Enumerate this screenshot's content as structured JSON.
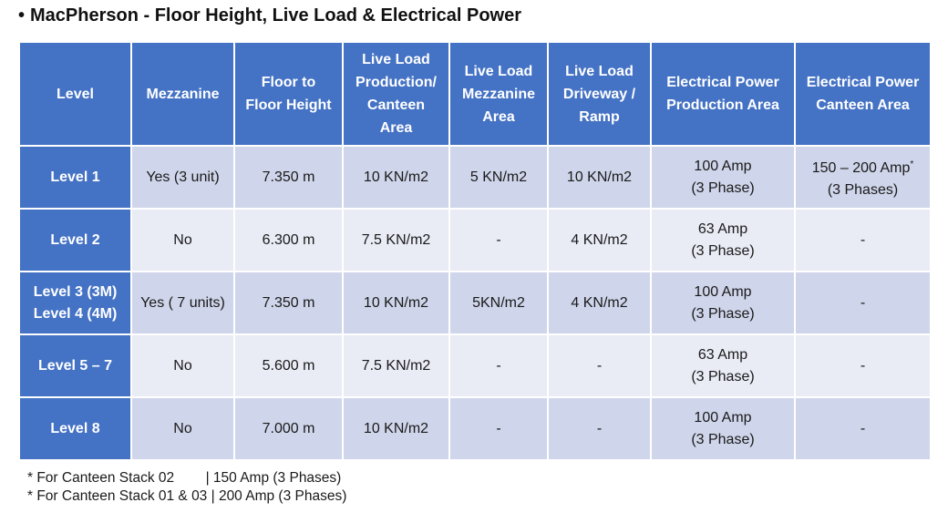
{
  "title": {
    "bullet": "•",
    "text": "MacPherson - Floor Height, Live Load & Electrical Power"
  },
  "table": {
    "headers": [
      "Level",
      "Mezzanine",
      "Floor to\nFloor Height",
      "Live Load\nProduction/\nCanteen\nArea",
      "Live Load\nMezzanine\nArea",
      "Live Load\nDriveway /\nRamp",
      "Electrical Power\nProduction Area",
      "Electrical Power\nCanteen Area"
    ],
    "rows": [
      {
        "level": "Level 1",
        "mezzanine": "Yes (3 unit)",
        "height": "7.350 m",
        "live_load_production": "10 KN/m2",
        "live_load_mezzanine": "5 KN/m2",
        "live_load_driveway": "10 KN/m2",
        "power_production": "100 Amp\n(3 Phase)",
        "power_canteen": "150 – 200 Amp",
        "power_canteen_mark": "*",
        "power_canteen_line2": "(3 Phases)"
      },
      {
        "level": "Level 2",
        "mezzanine": "No",
        "height": "6.300 m",
        "live_load_production": "7.5 KN/m2",
        "live_load_mezzanine": "-",
        "live_load_driveway": "4 KN/m2",
        "power_production": "63 Amp\n(3 Phase)",
        "power_canteen": "-"
      },
      {
        "level": "Level 3 (3M)\nLevel 4 (4M)",
        "mezzanine": "Yes ( 7 units)",
        "height": "7.350 m",
        "live_load_production": "10 KN/m2",
        "live_load_mezzanine": "5KN/m2",
        "live_load_driveway": "4 KN/m2",
        "power_production": "100 Amp\n(3 Phase)",
        "power_canteen": "-"
      },
      {
        "level": "Level 5 – 7",
        "mezzanine": "No",
        "height": "5.600 m",
        "live_load_production": "7.5 KN/m2",
        "live_load_mezzanine": "-",
        "live_load_driveway": "-",
        "power_production": "63 Amp\n(3 Phase)",
        "power_canteen": "-"
      },
      {
        "level": "Level 8",
        "mezzanine": "No",
        "height": "7.000 m",
        "live_load_production": "10 KN/m2",
        "live_load_mezzanine": "-",
        "live_load_driveway": "-",
        "power_production": "100 Amp\n(3 Phase)",
        "power_canteen": "-"
      }
    ]
  },
  "notes": [
    "* For Canteen Stack 02        | 150 Amp (3 Phases)",
    "* For Canteen Stack 01 & 03 | 200 Amp (3 Phases)"
  ],
  "colors": {
    "header_bg": "#4472c4",
    "row_odd_bg": "#cfd5ea",
    "row_even_bg": "#e9ebf5"
  }
}
